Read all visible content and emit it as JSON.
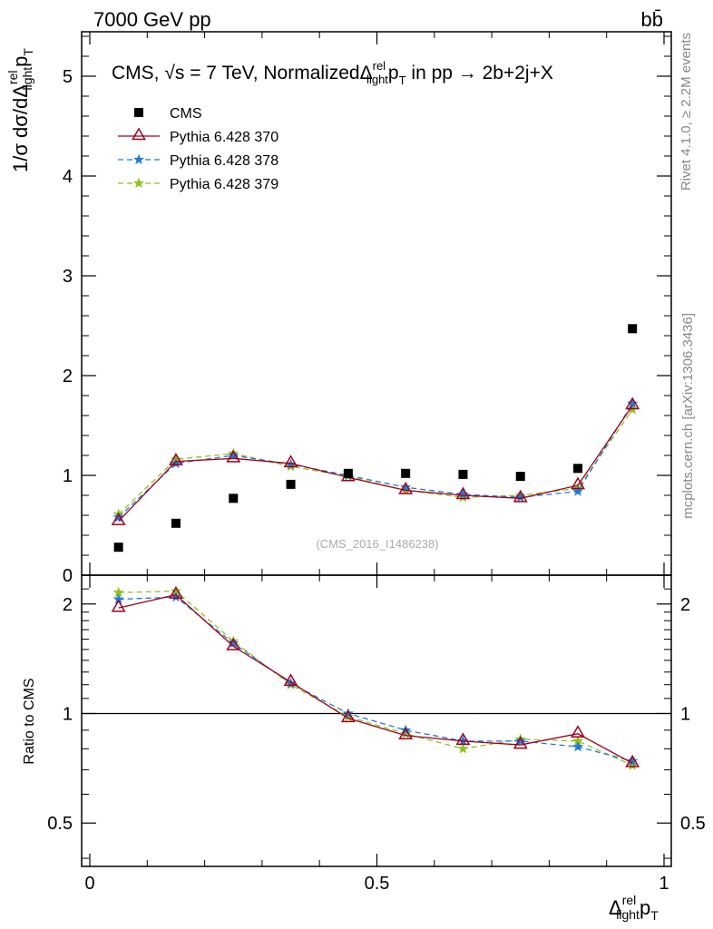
{
  "header": {
    "energy_label": "7000 GeV pp",
    "process_label": "bb̄"
  },
  "side_labels": {
    "rivet": "Rivet 4.1.0, ≥ 2.2M events",
    "mcplots": "mcplots.cern.ch [arXiv:1306.3436]"
  },
  "watermark": "(CMS_2016_I1486238)",
  "chart_data": {
    "type": "scatter",
    "title": "CMS, √s = 7 TeV, NormalizedΔ_light^rel p_T in pp → 2b+2j+X",
    "title_parts": {
      "prefix": "CMS, ",
      "sqrt": "√",
      "s_eq": "s = 7 TeV, Normalized",
      "delta": "Δ",
      "sup": "rel",
      "sub": "light",
      "p": "p",
      "t": "T",
      "suffix": " in pp → ",
      "final": " 2b+2j+X"
    },
    "xlabel": {
      "delta": "Δ",
      "sup": "rel",
      "sub": "light",
      "p": "p",
      "t": "T"
    },
    "ylabel_main": {
      "text": "1/σ dσ/dΔ",
      "sup": "rel",
      "sub": "light",
      "p": "p",
      "t": "T"
    },
    "ylabel_ratio": "Ratio to CMS",
    "xlim": [
      0,
      1
    ],
    "ylim_main": [
      0,
      5.45
    ],
    "ylim_ratio_log": [
      0.38,
      2.4
    ],
    "x_ticks": [
      {
        "value": 0,
        "label": "0"
      },
      {
        "value": 0.5,
        "label": "0.5"
      },
      {
        "value": 1,
        "label": "1"
      }
    ],
    "y_ticks_main": [
      {
        "value": 0,
        "label": "0"
      },
      {
        "value": 1,
        "label": "1"
      },
      {
        "value": 2,
        "label": "2"
      },
      {
        "value": 3,
        "label": "3"
      },
      {
        "value": 4,
        "label": "4"
      },
      {
        "value": 5,
        "label": "5"
      }
    ],
    "y_ticks_ratio": [
      {
        "value": 0.5,
        "label": "0.5"
      },
      {
        "value": 1,
        "label": "1"
      },
      {
        "value": 2,
        "label": "2"
      }
    ],
    "x": [
      0.05,
      0.15,
      0.25,
      0.35,
      0.45,
      0.55,
      0.65,
      0.75,
      0.85,
      0.945
    ],
    "data_series": {
      "name": "CMS",
      "color": "#000000",
      "values": [
        0.28,
        0.52,
        0.77,
        0.91,
        1.02,
        1.02,
        1.01,
        0.99,
        1.07,
        2.47
      ]
    },
    "series": [
      {
        "name": "Pythia 6.428 370",
        "color": "#a0001e",
        "marker": "triangle",
        "dash": "",
        "values": [
          0.54,
          1.14,
          1.17,
          1.12,
          0.98,
          0.85,
          0.8,
          0.77,
          0.9,
          1.7
        ],
        "ratio": [
          1.95,
          2.12,
          1.53,
          1.22,
          0.97,
          0.87,
          0.84,
          0.82,
          0.88,
          0.73
        ]
      },
      {
        "name": "Pythia 6.428 378",
        "color": "#1f7bd6",
        "marker": "star",
        "dash": "6,4",
        "values": [
          0.58,
          1.12,
          1.2,
          1.11,
          1.0,
          0.88,
          0.81,
          0.78,
          0.84,
          1.72
        ],
        "ratio": [
          2.06,
          2.09,
          1.56,
          1.21,
          1.0,
          0.9,
          0.84,
          0.84,
          0.81,
          0.74
        ]
      },
      {
        "name": "Pythia 6.428 379",
        "color": "#8fc21b",
        "marker": "star",
        "dash": "6,4",
        "values": [
          0.61,
          1.16,
          1.22,
          1.09,
          0.99,
          0.85,
          0.78,
          0.8,
          0.87,
          1.66
        ],
        "ratio": [
          2.15,
          2.17,
          1.58,
          1.2,
          0.98,
          0.88,
          0.8,
          0.85,
          0.84,
          0.72
        ]
      }
    ],
    "legend": [
      "CMS",
      "Pythia 6.428 370",
      "Pythia 6.428 378",
      "Pythia 6.428 379"
    ],
    "legend_position": "top-left"
  }
}
